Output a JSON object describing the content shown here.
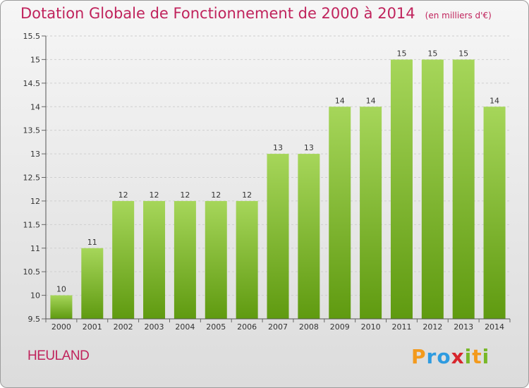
{
  "title": "Dotation Globale de Fonctionnement de 2000 à 2014",
  "subtitle": "(en milliers d'€)",
  "commune": "HEULAND",
  "brand": {
    "text": "Proxiti",
    "letters": [
      {
        "ch": "P",
        "color": "#f39a1d"
      },
      {
        "ch": "r",
        "color": "#2e9be0"
      },
      {
        "ch": "o",
        "color": "#2e9be0"
      },
      {
        "ch": "x",
        "color": "#d7262d"
      },
      {
        "ch": "i",
        "color": "#78b828"
      },
      {
        "ch": "t",
        "color": "#f39a1d"
      },
      {
        "ch": "i",
        "color": "#78b828"
      }
    ]
  },
  "colors": {
    "bar_top": "#a6d65a",
    "bar_bottom": "#5f9a10",
    "accent": "#c0235c"
  },
  "chart_data": {
    "type": "bar",
    "title": "Dotation Globale de Fonctionnement de 2000 à 2014",
    "subtitle": "(en milliers d'€)",
    "categories": [
      "2000",
      "2001",
      "2002",
      "2003",
      "2004",
      "2005",
      "2006",
      "2007",
      "2008",
      "2009",
      "2010",
      "2011",
      "2012",
      "2013",
      "2014"
    ],
    "values": [
      10,
      11,
      12,
      12,
      12,
      12,
      12,
      13,
      13,
      14,
      14,
      15,
      15,
      15,
      14
    ],
    "ylim": [
      9.5,
      15.5
    ],
    "yticks": [
      "9.5",
      "10",
      "10.5",
      "11",
      "11.5",
      "12",
      "12.5",
      "13",
      "13.5",
      "14",
      "14.5",
      "15",
      "15.5"
    ],
    "grid": true,
    "xlabel": "",
    "ylabel": ""
  }
}
